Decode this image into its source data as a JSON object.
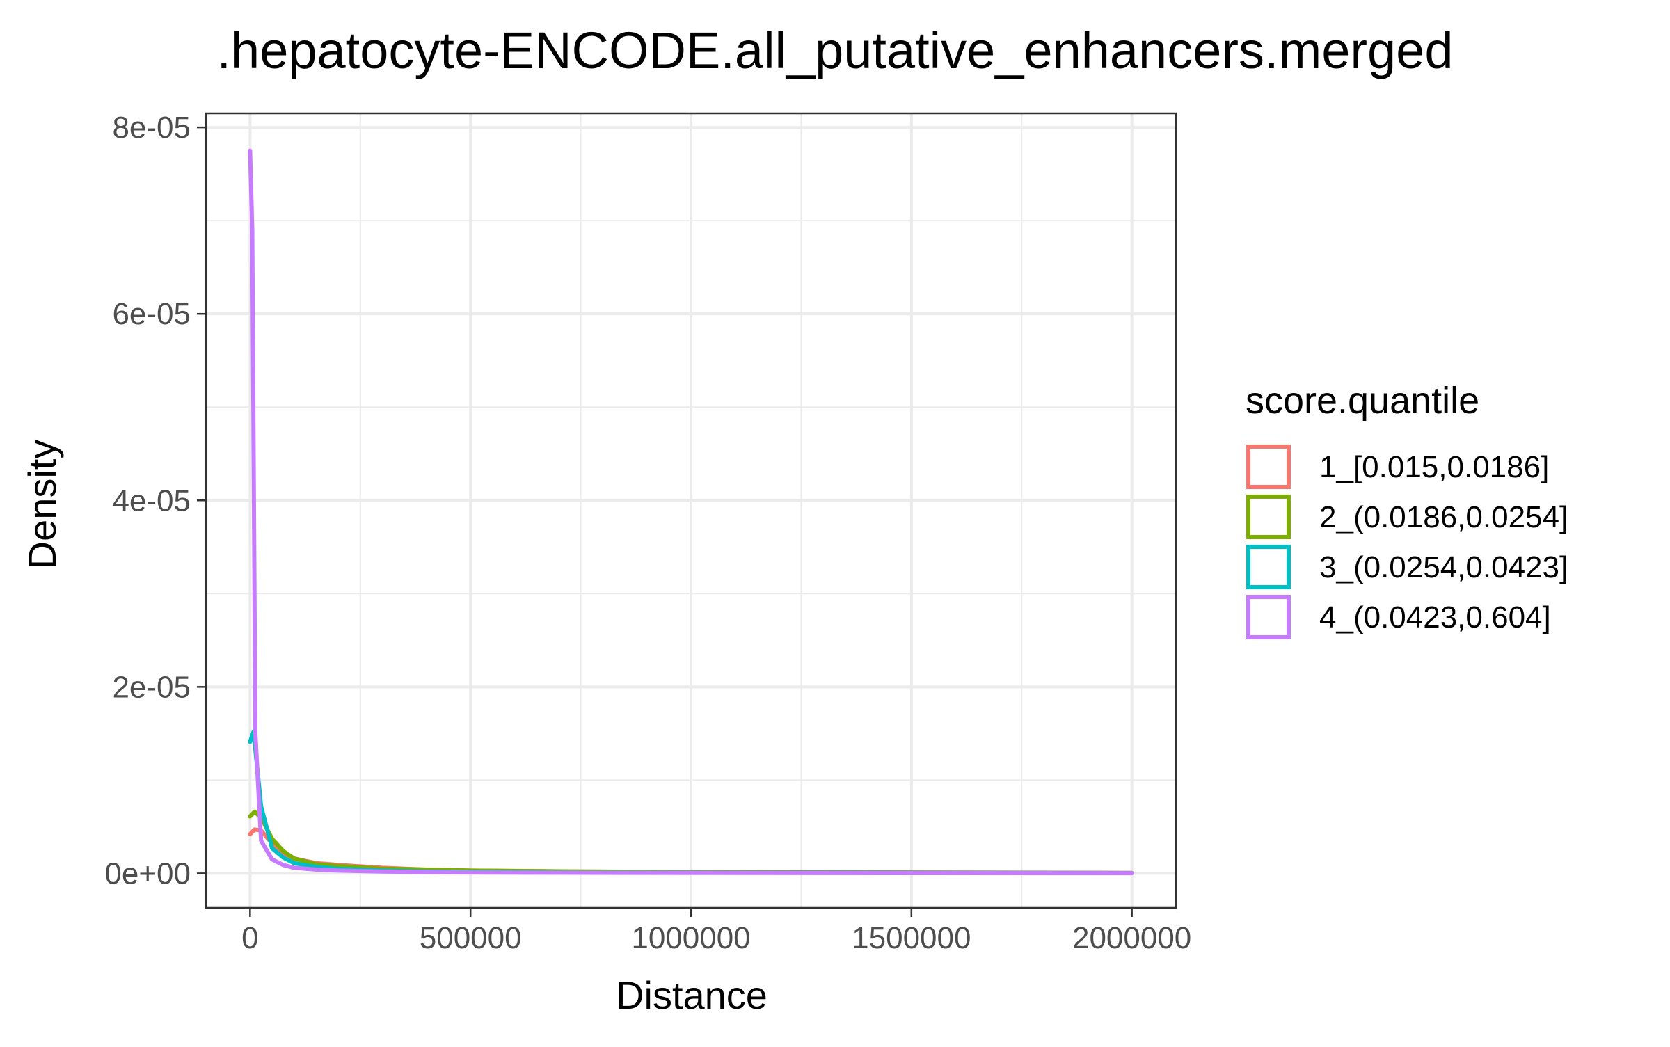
{
  "chart_data": {
    "type": "line",
    "title": ".hepatocyte-ENCODE.all_putative_enhancers.merged",
    "xlabel": "Distance",
    "ylabel": "Density",
    "xlim": [
      -100000,
      2100000
    ],
    "ylim": [
      -3.7e-06,
      8.15e-05
    ],
    "x_ticks": [
      0,
      500000,
      1000000,
      1500000,
      2000000
    ],
    "x_tick_labels": [
      "0",
      "500000",
      "1000000",
      "1500000",
      "2000000"
    ],
    "y_ticks": [
      0,
      2e-05,
      4e-05,
      6e-05,
      8e-05
    ],
    "y_tick_labels": [
      "0e+00",
      "2e-05",
      "4e-05",
      "6e-05",
      "8e-05"
    ],
    "grid": true,
    "legend": {
      "title": "score.quantile",
      "position": "right"
    },
    "series": [
      {
        "name": "1_[0.015,0.0186]",
        "color": "#F8766D",
        "points": [
          [
            0,
            4.2e-06
          ],
          [
            10000,
            4.7e-06
          ],
          [
            25000,
            4.6e-06
          ],
          [
            50000,
            3.2e-06
          ],
          [
            75000,
            2.2e-06
          ],
          [
            100000,
            1.6e-06
          ],
          [
            150000,
            1.1e-06
          ],
          [
            200000,
            9e-07
          ],
          [
            300000,
            6e-07
          ],
          [
            400000,
            4e-07
          ],
          [
            500000,
            3e-07
          ],
          [
            750000,
            2e-07
          ],
          [
            1000000,
            1.5e-07
          ],
          [
            1500000,
            1e-07
          ],
          [
            2000000,
            5e-08
          ]
        ]
      },
      {
        "name": "2_(0.0186,0.0254]",
        "color": "#7CAE00",
        "points": [
          [
            0,
            6.1e-06
          ],
          [
            10000,
            6.6e-06
          ],
          [
            25000,
            6e-06
          ],
          [
            50000,
            3.7e-06
          ],
          [
            75000,
            2.4e-06
          ],
          [
            100000,
            1.6e-06
          ],
          [
            150000,
            1e-06
          ],
          [
            200000,
            8e-07
          ],
          [
            300000,
            5e-07
          ],
          [
            400000,
            4e-07
          ],
          [
            500000,
            3e-07
          ],
          [
            750000,
            2e-07
          ],
          [
            1000000,
            1.3e-07
          ],
          [
            1500000,
            8e-08
          ],
          [
            2000000,
            4e-08
          ]
        ]
      },
      {
        "name": "3_(0.0254,0.0423]",
        "color": "#00BFC4",
        "points": [
          [
            0,
            1.41e-05
          ],
          [
            8000,
            1.52e-05
          ],
          [
            25000,
            7.2e-06
          ],
          [
            50000,
            2.7e-06
          ],
          [
            75000,
            1.7e-06
          ],
          [
            100000,
            1.1e-06
          ],
          [
            150000,
            7e-07
          ],
          [
            200000,
            5e-07
          ],
          [
            300000,
            3e-07
          ],
          [
            400000,
            2e-07
          ],
          [
            500000,
            1.5e-07
          ],
          [
            750000,
            1e-07
          ],
          [
            1000000,
            8e-08
          ],
          [
            1500000,
            5e-08
          ],
          [
            2000000,
            3e-08
          ]
        ]
      },
      {
        "name": "4_(0.0423,0.604]",
        "color": "#C77CFF",
        "points": [
          [
            0,
            7.75e-05
          ],
          [
            5000,
            6.9e-05
          ],
          [
            12000,
            1.5e-05
          ],
          [
            25000,
            3.5e-06
          ],
          [
            50000,
            1.5e-06
          ],
          [
            75000,
            9e-07
          ],
          [
            100000,
            6e-07
          ],
          [
            150000,
            4e-07
          ],
          [
            200000,
            3e-07
          ],
          [
            300000,
            2e-07
          ],
          [
            500000,
            1e-07
          ],
          [
            750000,
            7e-08
          ],
          [
            1000000,
            5e-08
          ],
          [
            1500000,
            3e-08
          ],
          [
            2000000,
            2e-08
          ]
        ]
      }
    ]
  }
}
